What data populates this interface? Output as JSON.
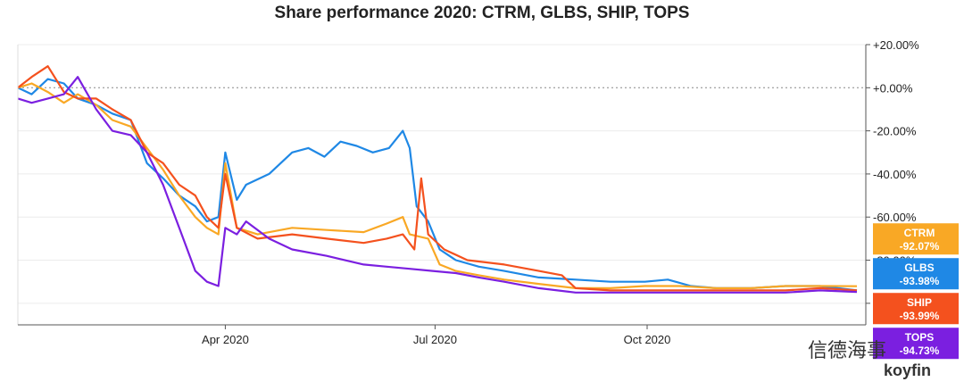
{
  "chart_data": {
    "type": "line",
    "title": "Share performance 2020: CTRM, GLBS, SHIP, TOPS",
    "xlabel": "",
    "ylabel": "",
    "x_range": [
      "2020-01-02",
      "2020-12-31"
    ],
    "x_ticks": [
      {
        "date": "2020-04-01",
        "label": "Apr 2020"
      },
      {
        "date": "2020-07-01",
        "label": "Jul 2020"
      },
      {
        "date": "2020-10-01",
        "label": "Oct 2020"
      }
    ],
    "ylim": [
      -110,
      20
    ],
    "y_ticks": [
      {
        "value": 20,
        "label": "+20.00%"
      },
      {
        "value": 0,
        "label": "+0.00%"
      },
      {
        "value": -20,
        "label": "-20.00%"
      },
      {
        "value": -40,
        "label": "-40.00%"
      },
      {
        "value": -60,
        "label": "-60.00%"
      },
      {
        "value": -80,
        "label": "-80.00%"
      },
      {
        "value": -100,
        "label": "-100.00%"
      }
    ],
    "zero_line": "dotted",
    "series": [
      {
        "name": "GLBS",
        "color": "#1f88e5",
        "final_label": "-93.98%",
        "points": [
          [
            "2020-01-02",
            0
          ],
          [
            "2020-01-08",
            -3
          ],
          [
            "2020-01-15",
            4
          ],
          [
            "2020-01-22",
            2
          ],
          [
            "2020-01-28",
            -5
          ],
          [
            "2020-02-05",
            -8
          ],
          [
            "2020-02-12",
            -12
          ],
          [
            "2020-02-20",
            -15
          ],
          [
            "2020-02-27",
            -35
          ],
          [
            "2020-03-05",
            -42
          ],
          [
            "2020-03-12",
            -50
          ],
          [
            "2020-03-19",
            -55
          ],
          [
            "2020-03-24",
            -62
          ],
          [
            "2020-03-29",
            -60
          ],
          [
            "2020-04-01",
            -30
          ],
          [
            "2020-04-06",
            -52
          ],
          [
            "2020-04-10",
            -45
          ],
          [
            "2020-04-20",
            -40
          ],
          [
            "2020-04-30",
            -30
          ],
          [
            "2020-05-07",
            -28
          ],
          [
            "2020-05-14",
            -32
          ],
          [
            "2020-05-21",
            -25
          ],
          [
            "2020-05-28",
            -27
          ],
          [
            "2020-06-04",
            -30
          ],
          [
            "2020-06-11",
            -28
          ],
          [
            "2020-06-17",
            -20
          ],
          [
            "2020-06-20",
            -28
          ],
          [
            "2020-06-23",
            -55
          ],
          [
            "2020-06-28",
            -62
          ],
          [
            "2020-07-03",
            -75
          ],
          [
            "2020-07-10",
            -80
          ],
          [
            "2020-07-20",
            -83
          ],
          [
            "2020-07-31",
            -85
          ],
          [
            "2020-08-15",
            -88
          ],
          [
            "2020-08-31",
            -89
          ],
          [
            "2020-09-15",
            -90
          ],
          [
            "2020-09-30",
            -90
          ],
          [
            "2020-10-10",
            -89
          ],
          [
            "2020-10-20",
            -92
          ],
          [
            "2020-10-31",
            -93
          ],
          [
            "2020-11-15",
            -93
          ],
          [
            "2020-11-30",
            -92
          ],
          [
            "2020-12-15",
            -92
          ],
          [
            "2020-12-31",
            -94
          ]
        ]
      },
      {
        "name": "CTRM",
        "color": "#f9a825",
        "final_label": "-92.07%",
        "points": [
          [
            "2020-01-02",
            0
          ],
          [
            "2020-01-08",
            2
          ],
          [
            "2020-01-15",
            -2
          ],
          [
            "2020-01-22",
            -7
          ],
          [
            "2020-01-28",
            -3
          ],
          [
            "2020-02-05",
            -8
          ],
          [
            "2020-02-12",
            -15
          ],
          [
            "2020-02-20",
            -18
          ],
          [
            "2020-02-27",
            -28
          ],
          [
            "2020-03-05",
            -38
          ],
          [
            "2020-03-12",
            -50
          ],
          [
            "2020-03-19",
            -60
          ],
          [
            "2020-03-24",
            -65
          ],
          [
            "2020-03-29",
            -68
          ],
          [
            "2020-04-01",
            -35
          ],
          [
            "2020-04-06",
            -65
          ],
          [
            "2020-04-15",
            -68
          ],
          [
            "2020-04-30",
            -65
          ],
          [
            "2020-05-15",
            -66
          ],
          [
            "2020-05-31",
            -67
          ],
          [
            "2020-06-10",
            -63
          ],
          [
            "2020-06-17",
            -60
          ],
          [
            "2020-06-20",
            -68
          ],
          [
            "2020-06-28",
            -70
          ],
          [
            "2020-07-03",
            -82
          ],
          [
            "2020-07-10",
            -85
          ],
          [
            "2020-07-20",
            -87
          ],
          [
            "2020-07-31",
            -89
          ],
          [
            "2020-08-15",
            -91
          ],
          [
            "2020-08-31",
            -93
          ],
          [
            "2020-09-15",
            -93
          ],
          [
            "2020-09-30",
            -92
          ],
          [
            "2020-10-15",
            -92
          ],
          [
            "2020-10-31",
            -93
          ],
          [
            "2020-11-15",
            -93
          ],
          [
            "2020-11-30",
            -92
          ],
          [
            "2020-12-15",
            -92
          ],
          [
            "2020-12-31",
            -92.07
          ]
        ]
      },
      {
        "name": "SHIP",
        "color": "#f4511e",
        "final_label": "-93.99%",
        "points": [
          [
            "2020-01-02",
            0
          ],
          [
            "2020-01-08",
            5
          ],
          [
            "2020-01-15",
            10
          ],
          [
            "2020-01-22",
            -2
          ],
          [
            "2020-01-28",
            -5
          ],
          [
            "2020-02-05",
            -5
          ],
          [
            "2020-02-12",
            -10
          ],
          [
            "2020-02-20",
            -15
          ],
          [
            "2020-02-27",
            -30
          ],
          [
            "2020-03-05",
            -35
          ],
          [
            "2020-03-12",
            -45
          ],
          [
            "2020-03-19",
            -50
          ],
          [
            "2020-03-24",
            -60
          ],
          [
            "2020-03-29",
            -65
          ],
          [
            "2020-04-01",
            -40
          ],
          [
            "2020-04-06",
            -65
          ],
          [
            "2020-04-15",
            -70
          ],
          [
            "2020-04-30",
            -68
          ],
          [
            "2020-05-15",
            -70
          ],
          [
            "2020-05-31",
            -72
          ],
          [
            "2020-06-10",
            -70
          ],
          [
            "2020-06-17",
            -68
          ],
          [
            "2020-06-22",
            -75
          ],
          [
            "2020-06-25",
            -42
          ],
          [
            "2020-06-28",
            -68
          ],
          [
            "2020-07-05",
            -75
          ],
          [
            "2020-07-15",
            -80
          ],
          [
            "2020-07-31",
            -82
          ],
          [
            "2020-08-15",
            -85
          ],
          [
            "2020-08-25",
            -87
          ],
          [
            "2020-08-31",
            -93
          ],
          [
            "2020-09-15",
            -94
          ],
          [
            "2020-09-30",
            -94
          ],
          [
            "2020-10-15",
            -94
          ],
          [
            "2020-10-31",
            -94
          ],
          [
            "2020-11-15",
            -94
          ],
          [
            "2020-11-30",
            -94
          ],
          [
            "2020-12-15",
            -93
          ],
          [
            "2020-12-31",
            -93.99
          ]
        ]
      },
      {
        "name": "TOPS",
        "color": "#7b1fe0",
        "final_label": "-94.73%",
        "points": [
          [
            "2020-01-02",
            -5
          ],
          [
            "2020-01-08",
            -7
          ],
          [
            "2020-01-15",
            -5
          ],
          [
            "2020-01-22",
            -3
          ],
          [
            "2020-01-28",
            5
          ],
          [
            "2020-02-05",
            -10
          ],
          [
            "2020-02-12",
            -20
          ],
          [
            "2020-02-20",
            -22
          ],
          [
            "2020-02-27",
            -30
          ],
          [
            "2020-03-05",
            -45
          ],
          [
            "2020-03-12",
            -65
          ],
          [
            "2020-03-19",
            -85
          ],
          [
            "2020-03-24",
            -90
          ],
          [
            "2020-03-29",
            -92
          ],
          [
            "2020-04-01",
            -65
          ],
          [
            "2020-04-06",
            -68
          ],
          [
            "2020-04-10",
            -62
          ],
          [
            "2020-04-20",
            -70
          ],
          [
            "2020-04-30",
            -75
          ],
          [
            "2020-05-15",
            -78
          ],
          [
            "2020-05-31",
            -82
          ],
          [
            "2020-06-10",
            -83
          ],
          [
            "2020-06-20",
            -84
          ],
          [
            "2020-06-30",
            -85
          ],
          [
            "2020-07-10",
            -86
          ],
          [
            "2020-07-20",
            -88
          ],
          [
            "2020-07-31",
            -90
          ],
          [
            "2020-08-15",
            -93
          ],
          [
            "2020-08-31",
            -95
          ],
          [
            "2020-09-15",
            -95
          ],
          [
            "2020-09-30",
            -95
          ],
          [
            "2020-10-15",
            -95
          ],
          [
            "2020-10-31",
            -95
          ],
          [
            "2020-11-15",
            -95
          ],
          [
            "2020-11-30",
            -95
          ],
          [
            "2020-12-15",
            -94
          ],
          [
            "2020-12-31",
            -94.73
          ]
        ]
      }
    ],
    "badges_order": [
      "CTRM",
      "GLBS",
      "SHIP",
      "TOPS"
    ]
  },
  "watermark": "信德海事",
  "brand": "koyfin"
}
